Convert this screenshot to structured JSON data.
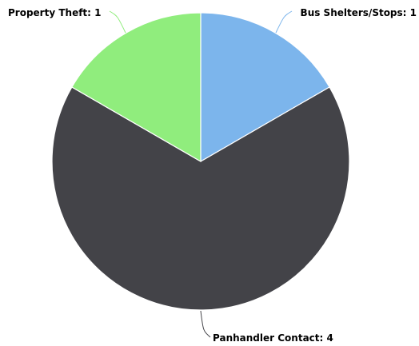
{
  "chart_data": {
    "type": "pie",
    "title": "",
    "slices": [
      {
        "name": "Bus Shelters/Stops",
        "value": 1,
        "label": "Bus Shelters/Stops: 1",
        "color": "#7cb5ec"
      },
      {
        "name": "Panhandler Contact",
        "value": 4,
        "label": "Panhandler Contact: 4",
        "color": "#434348"
      },
      {
        "name": "Property Theft",
        "value": 1,
        "label": "Property Theft: 1",
        "color": "#90ed7d"
      }
    ],
    "start_angle_deg": 0,
    "direction": "clockwise",
    "legend": "none",
    "data_labels": "outside with connectors"
  }
}
